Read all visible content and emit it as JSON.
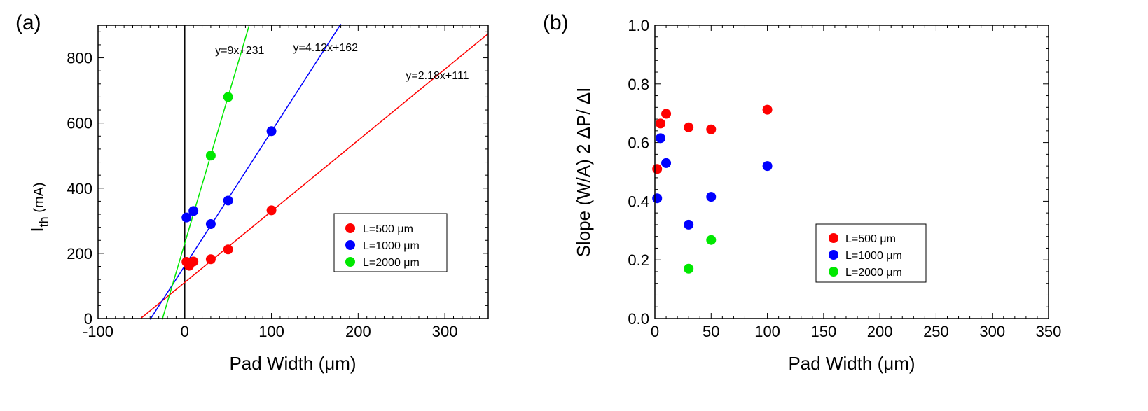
{
  "chart_data": [
    {
      "panel": "(a)",
      "type": "scatter",
      "xlabel": "Pad Width (μm)",
      "ylabel_main": "I",
      "ylabel_sub": "th",
      "ylabel_unit": " (mA)",
      "xlim": [
        -100,
        350
      ],
      "ylim": [
        0,
        900
      ],
      "xticks": [
        -100,
        0,
        100,
        200,
        300
      ],
      "yticks": [
        0,
        200,
        400,
        600,
        800
      ],
      "vertical_line_x": 0,
      "legend_position": "center-right",
      "series": [
        {
          "name": "L=500 μm",
          "color": "#ff0000",
          "points": [
            [
              2,
              174
            ],
            [
              5,
              162
            ],
            [
              10,
              175
            ],
            [
              30,
              182
            ],
            [
              50,
              212
            ],
            [
              100,
              332
            ]
          ],
          "fit": {
            "slope": 2.18,
            "intercept": 111,
            "x_range": [
              -50,
              350
            ],
            "label": "y=2.18x+111",
            "label_at": [
              255,
              735
            ]
          }
        },
        {
          "name": "L=1000 μm",
          "color": "#0000ff",
          "points": [
            [
              2,
              310
            ],
            [
              10,
              330
            ],
            [
              30,
              290
            ],
            [
              50,
              362
            ],
            [
              100,
              575
            ]
          ],
          "fit": {
            "slope": 4.12,
            "intercept": 162,
            "x_range": [
              -40,
              180
            ],
            "label": "y=4.12x+162",
            "label_at": [
              125,
              820
            ]
          }
        },
        {
          "name": "L=2000 μm",
          "color": "#00e800",
          "points": [
            [
              30,
              500
            ],
            [
              50,
              680
            ]
          ],
          "fit": {
            "slope": 9,
            "intercept": 231,
            "x_range": [
              -26,
              74
            ],
            "label": "y=9x+231",
            "label_at": [
              35,
              812
            ]
          }
        }
      ]
    },
    {
      "panel": "(b)",
      "type": "scatter",
      "xlabel": "Pad Width (μm)",
      "ylabel": "Slope (W/A) 2 ΔP/ ΔI",
      "xlim": [
        0,
        350
      ],
      "ylim": [
        0.0,
        1.0
      ],
      "xticks": [
        0,
        50,
        100,
        150,
        200,
        250,
        300,
        350
      ],
      "yticks": [
        0.0,
        0.2,
        0.4,
        0.6,
        0.8,
        1.0
      ],
      "ytick_labels": [
        "0.0",
        "0.2",
        "0.4",
        "0.6",
        "0.8",
        "1.0"
      ],
      "legend_position": "lower-center",
      "series": [
        {
          "name": "L=500 μm",
          "color": "#ff0000",
          "points": [
            [
              2,
              0.51
            ],
            [
              5,
              0.665
            ],
            [
              10,
              0.698
            ],
            [
              30,
              0.652
            ],
            [
              50,
              0.645
            ],
            [
              100,
              0.712
            ]
          ]
        },
        {
          "name": "L=1000 μm",
          "color": "#0000ff",
          "points": [
            [
              2,
              0.41
            ],
            [
              5,
              0.615
            ],
            [
              10,
              0.53
            ],
            [
              30,
              0.32
            ],
            [
              50,
              0.415
            ],
            [
              100,
              0.52
            ]
          ]
        },
        {
          "name": "L=2000 μm",
          "color": "#00e800",
          "points": [
            [
              30,
              0.17
            ],
            [
              50,
              0.268
            ]
          ]
        }
      ]
    }
  ]
}
